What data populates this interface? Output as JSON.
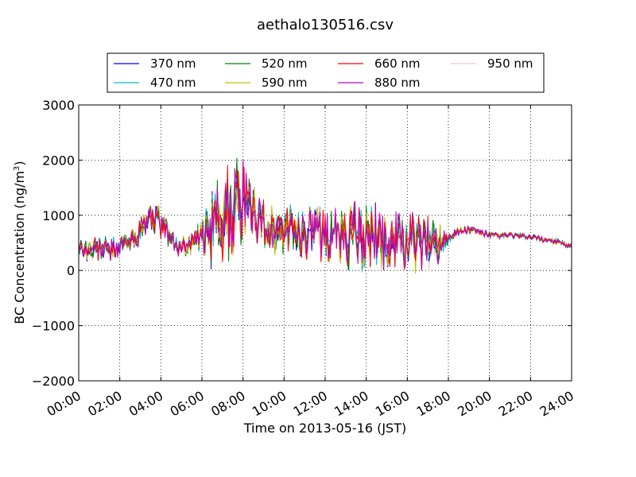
{
  "chart_data": {
    "type": "line",
    "title": "aethalo130516.csv",
    "xlabel": "Time on 2013-05-16 (JST)",
    "ylabel_main": "BC Concentration (ng/m",
    "ylabel_sup": "3",
    "ylabel_end": ")",
    "xlim": [
      0,
      24
    ],
    "ylim": [
      -2000,
      3000
    ],
    "x_unit": "hours",
    "grid": true,
    "legend_position": "top",
    "x_tick_labels": [
      "00:00",
      "02:00",
      "04:00",
      "06:00",
      "08:00",
      "10:00",
      "12:00",
      "14:00",
      "16:00",
      "18:00",
      "20:00",
      "22:00",
      "24:00"
    ],
    "y_tick_labels": [
      "−2000",
      "−1000",
      "0",
      "1000",
      "2000",
      "3000"
    ],
    "series": [
      {
        "name": "370 nm",
        "color": "#0000ff"
      },
      {
        "name": "470 nm",
        "color": "#00bfbf"
      },
      {
        "name": "520 nm",
        "color": "#008000"
      },
      {
        "name": "590 nm",
        "color": "#bfbf00"
      },
      {
        "name": "660 nm",
        "color": "#ff0000"
      },
      {
        "name": "880 nm",
        "color": "#bf00bf"
      },
      {
        "name": "950 nm",
        "color": "#ffc0cb"
      }
    ],
    "anchors": {
      "x": [
        0.0,
        0.5,
        1.0,
        1.5,
        2.0,
        2.5,
        3.0,
        3.3,
        3.6,
        3.9,
        4.2,
        4.5,
        4.8,
        5.0,
        5.5,
        6.0,
        6.3,
        6.6,
        6.9,
        7.2,
        7.5,
        7.8,
        8.0,
        8.2,
        8.5,
        9.0,
        9.5,
        10.0,
        10.5,
        11.0,
        11.5,
        12.0,
        12.5,
        13.0,
        13.5,
        14.0,
        14.5,
        15.0,
        15.5,
        16.0,
        16.5,
        17.0,
        17.5,
        17.8,
        18.0,
        18.5,
        19.0,
        19.5,
        20.0,
        20.5,
        21.0,
        21.5,
        22.0,
        22.5,
        23.0,
        23.5,
        24.0
      ],
      "y": [
        450,
        350,
        400,
        380,
        450,
        500,
        700,
        900,
        1000,
        900,
        750,
        550,
        420,
        450,
        500,
        600,
        650,
        800,
        950,
        1100,
        1250,
        1200,
        1300,
        1200,
        1050,
        850,
        700,
        750,
        720,
        700,
        680,
        650,
        640,
        620,
        600,
        560,
        560,
        540,
        520,
        500,
        500,
        480,
        520,
        560,
        620,
        700,
        740,
        700,
        640,
        620,
        640,
        620,
        600,
        570,
        540,
        500,
        430
      ],
      "amp": [
        150,
        200,
        200,
        180,
        150,
        180,
        220,
        220,
        250,
        220,
        200,
        200,
        150,
        150,
        200,
        250,
        500,
        600,
        700,
        800,
        900,
        800,
        700,
        500,
        400,
        350,
        400,
        400,
        380,
        380,
        400,
        420,
        450,
        480,
        500,
        520,
        500,
        480,
        460,
        450,
        450,
        450,
        400,
        250,
        120,
        80,
        70,
        60,
        50,
        50,
        50,
        50,
        50,
        50,
        50,
        50,
        50
      ]
    }
  }
}
